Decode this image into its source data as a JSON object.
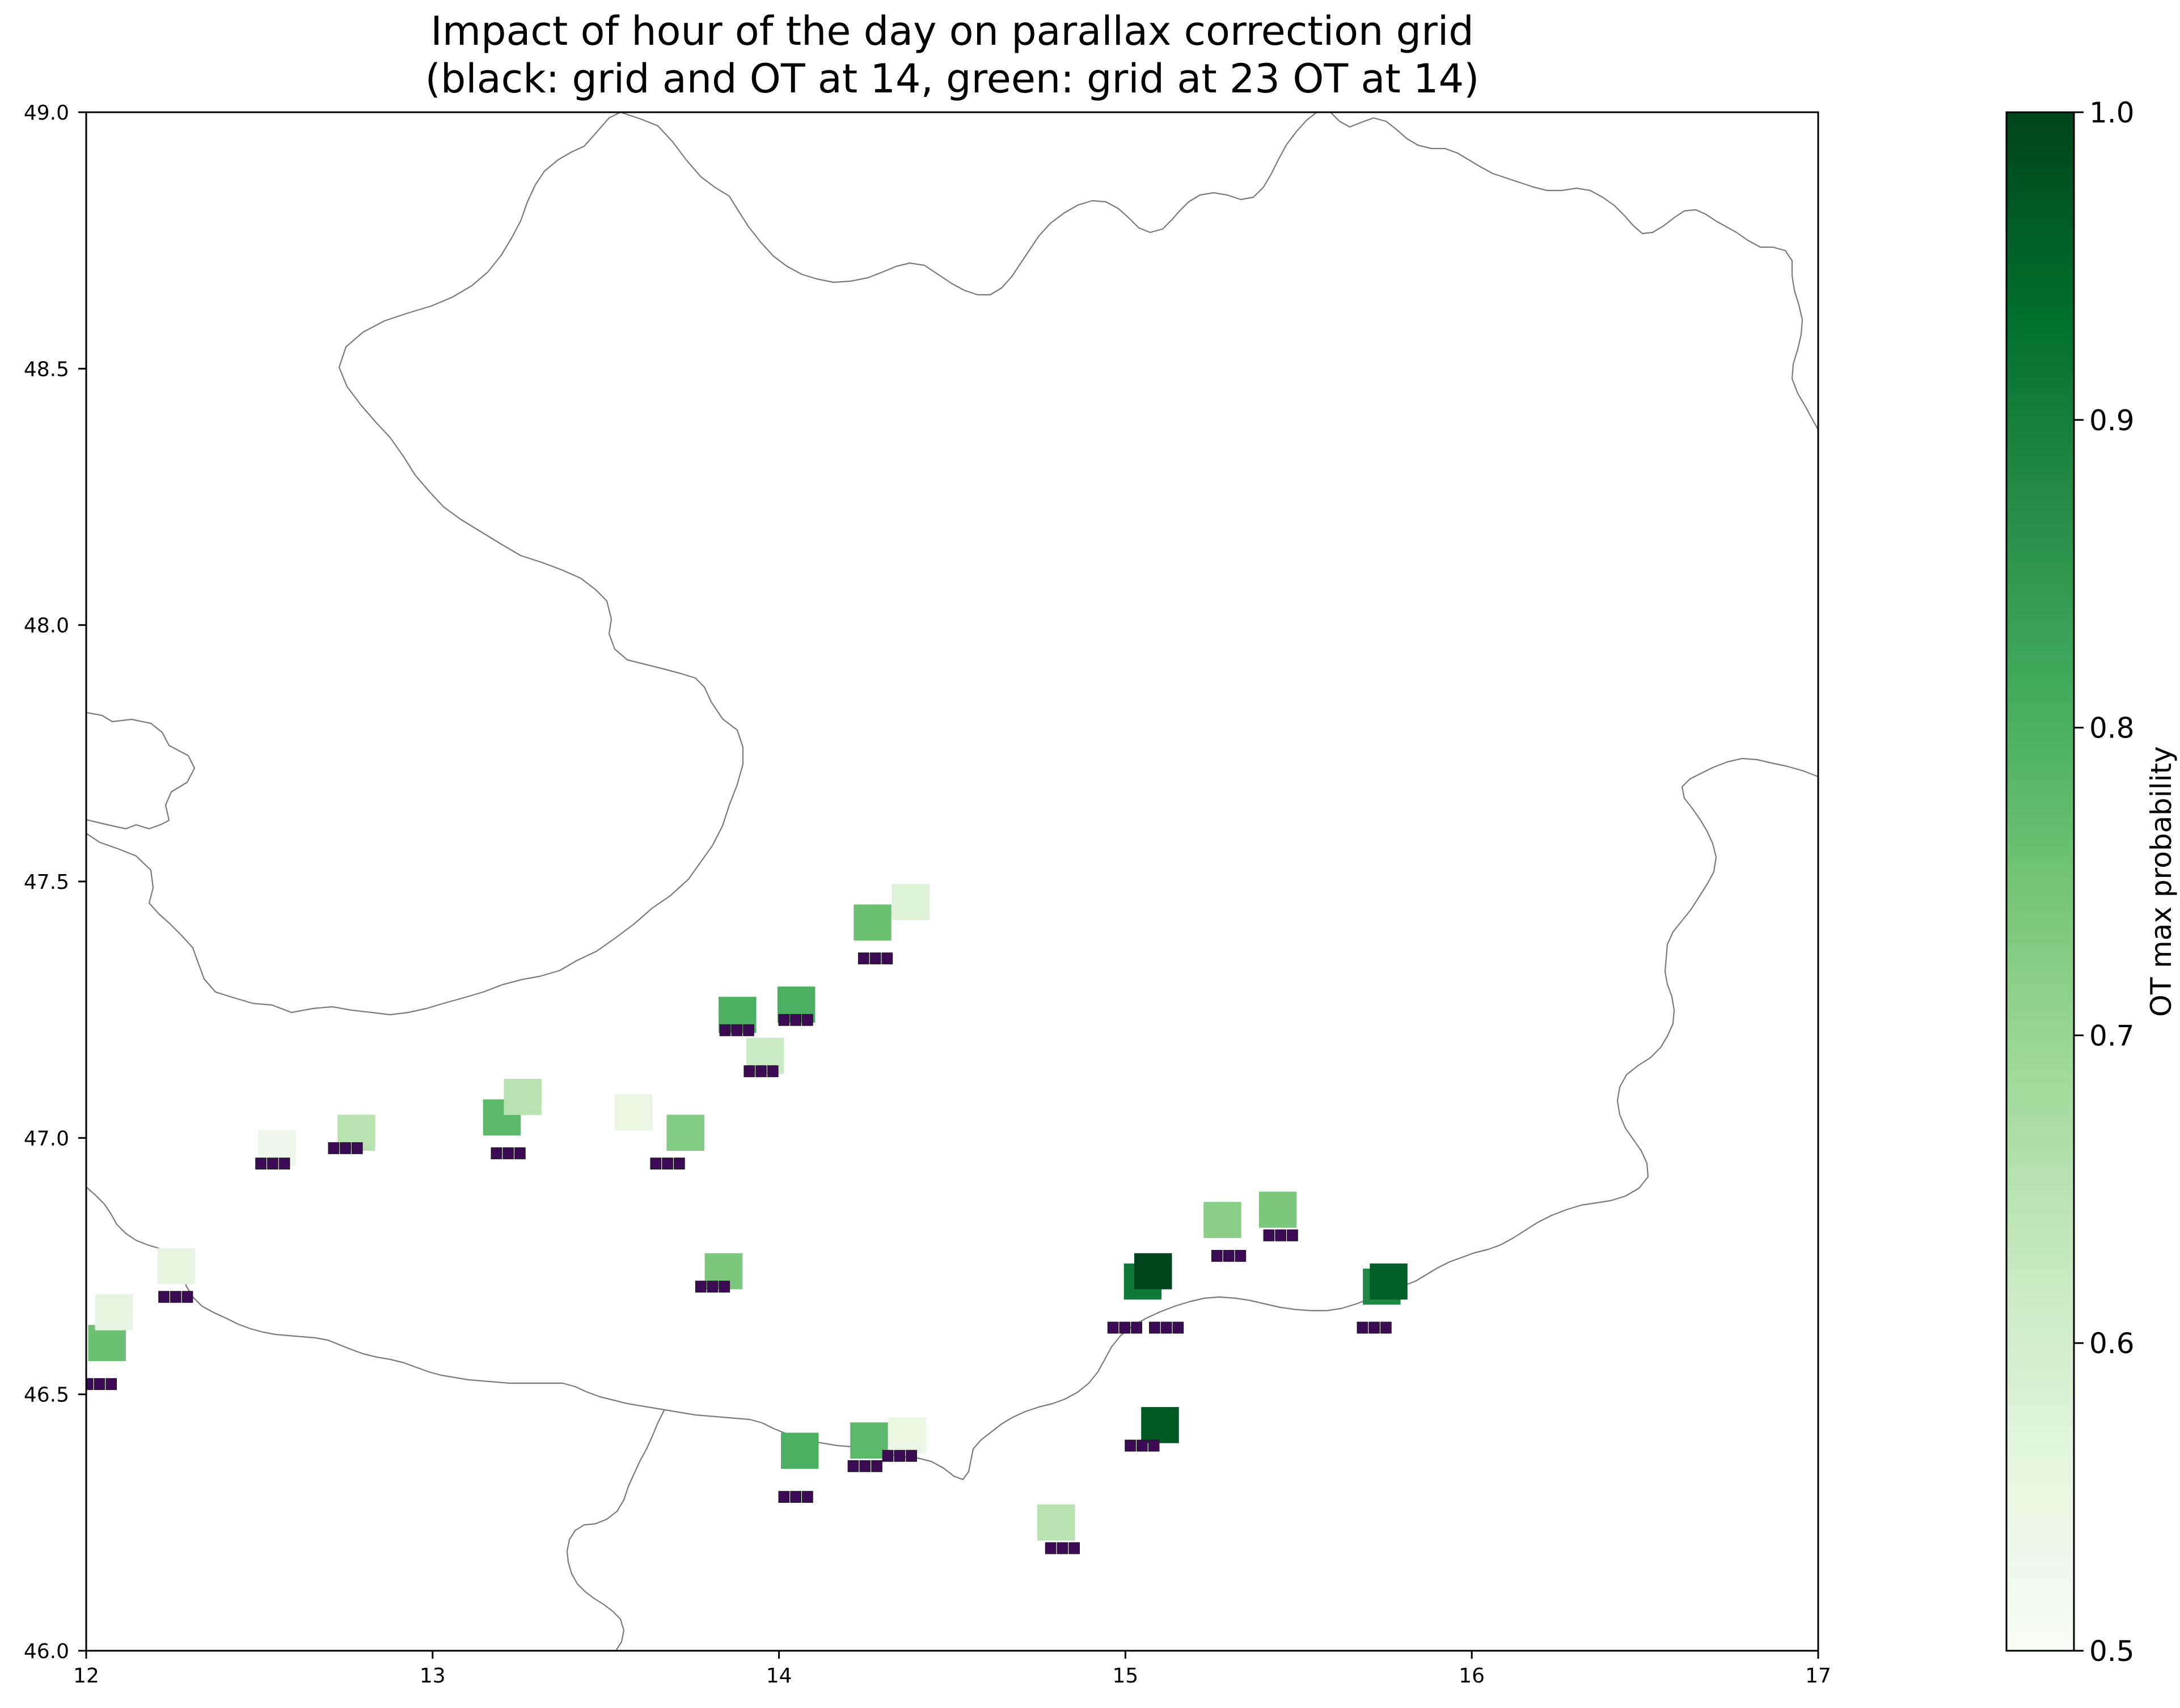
{
  "title_line1": "Impact of hour of the day on parallax correction grid",
  "title_line2": "(black: grid and OT at 14, green: grid at 23 OT at 14)",
  "map": {
    "xlim": [
      12,
      17
    ],
    "ylim": [
      46.0,
      49.0
    ],
    "x_ticks": [
      "12",
      "13",
      "14",
      "15",
      "16",
      "17"
    ],
    "y_ticks": [
      "46.0",
      "46.5",
      "47.0",
      "47.5",
      "48.0",
      "48.5",
      "49.0"
    ],
    "grid": false,
    "basemap": "Austria national border outline"
  },
  "colorbar": {
    "label": "OT max probability",
    "range": [
      0.5,
      1.0
    ],
    "ticks": [
      "0.5",
      "0.6",
      "0.7",
      "0.8",
      "0.9",
      "1.0"
    ],
    "colormap": "Greens"
  },
  "colors": {
    "black_grid": "#3d0a55",
    "border": "#7a7a7a",
    "green_low": "#f7fcf5",
    "green_high": "#00441b"
  },
  "chart_data": {
    "type": "heatmap",
    "note_layers": [
      "grid and OT at 14",
      "grid at 23 OT at 14"
    ],
    "cells_black": [
      {
        "lon": 12.04,
        "lat": 46.52
      },
      {
        "lon": 15.0,
        "lat": 46.63
      },
      {
        "lon": 15.12,
        "lat": 46.63
      },
      {
        "lon": 15.05,
        "lat": 46.4
      },
      {
        "lon": 14.28,
        "lat": 47.35
      },
      {
        "lon": 13.22,
        "lat": 46.97
      },
      {
        "lon": 13.68,
        "lat": 46.95
      },
      {
        "lon": 12.75,
        "lat": 46.98
      },
      {
        "lon": 14.05,
        "lat": 46.3
      },
      {
        "lon": 15.3,
        "lat": 46.77
      },
      {
        "lon": 15.45,
        "lat": 46.81
      },
      {
        "lon": 15.72,
        "lat": 46.63
      },
      {
        "lon": 14.82,
        "lat": 46.2
      },
      {
        "lon": 13.81,
        "lat": 46.71
      },
      {
        "lon": 12.26,
        "lat": 46.69
      },
      {
        "lon": 14.25,
        "lat": 46.36
      },
      {
        "lon": 13.88,
        "lat": 47.21
      },
      {
        "lon": 14.05,
        "lat": 47.23
      },
      {
        "lon": 13.95,
        "lat": 47.13
      },
      {
        "lon": 12.54,
        "lat": 46.95
      },
      {
        "lon": 14.35,
        "lat": 46.38
      }
    ],
    "cells_green": [
      {
        "lon": 12.06,
        "lat": 46.6,
        "p": 0.76
      },
      {
        "lon": 12.08,
        "lat": 46.66,
        "p": 0.56
      },
      {
        "lon": 12.26,
        "lat": 46.75,
        "p": 0.56
      },
      {
        "lon": 12.78,
        "lat": 47.01,
        "p": 0.65
      },
      {
        "lon": 12.55,
        "lat": 46.98,
        "p": 0.53
      },
      {
        "lon": 13.2,
        "lat": 47.04,
        "p": 0.78
      },
      {
        "lon": 13.26,
        "lat": 47.08,
        "p": 0.65
      },
      {
        "lon": 13.73,
        "lat": 47.01,
        "p": 0.73
      },
      {
        "lon": 13.58,
        "lat": 47.05,
        "p": 0.55
      },
      {
        "lon": 13.84,
        "lat": 46.74,
        "p": 0.74
      },
      {
        "lon": 13.88,
        "lat": 47.24,
        "p": 0.8
      },
      {
        "lon": 14.05,
        "lat": 47.26,
        "p": 0.8
      },
      {
        "lon": 13.96,
        "lat": 47.16,
        "p": 0.62
      },
      {
        "lon": 14.27,
        "lat": 47.42,
        "p": 0.76
      },
      {
        "lon": 14.38,
        "lat": 47.46,
        "p": 0.58
      },
      {
        "lon": 15.05,
        "lat": 46.72,
        "p": 0.91
      },
      {
        "lon": 15.08,
        "lat": 46.74,
        "p": 1.0
      },
      {
        "lon": 15.28,
        "lat": 46.84,
        "p": 0.72
      },
      {
        "lon": 15.44,
        "lat": 46.86,
        "p": 0.74
      },
      {
        "lon": 15.74,
        "lat": 46.71,
        "p": 0.88
      },
      {
        "lon": 15.76,
        "lat": 46.72,
        "p": 0.96
      },
      {
        "lon": 15.1,
        "lat": 46.44,
        "p": 0.97
      },
      {
        "lon": 14.06,
        "lat": 46.39,
        "p": 0.8
      },
      {
        "lon": 14.26,
        "lat": 46.41,
        "p": 0.78
      },
      {
        "lon": 14.37,
        "lat": 46.42,
        "p": 0.55
      },
      {
        "lon": 14.8,
        "lat": 46.25,
        "p": 0.65
      }
    ]
  }
}
